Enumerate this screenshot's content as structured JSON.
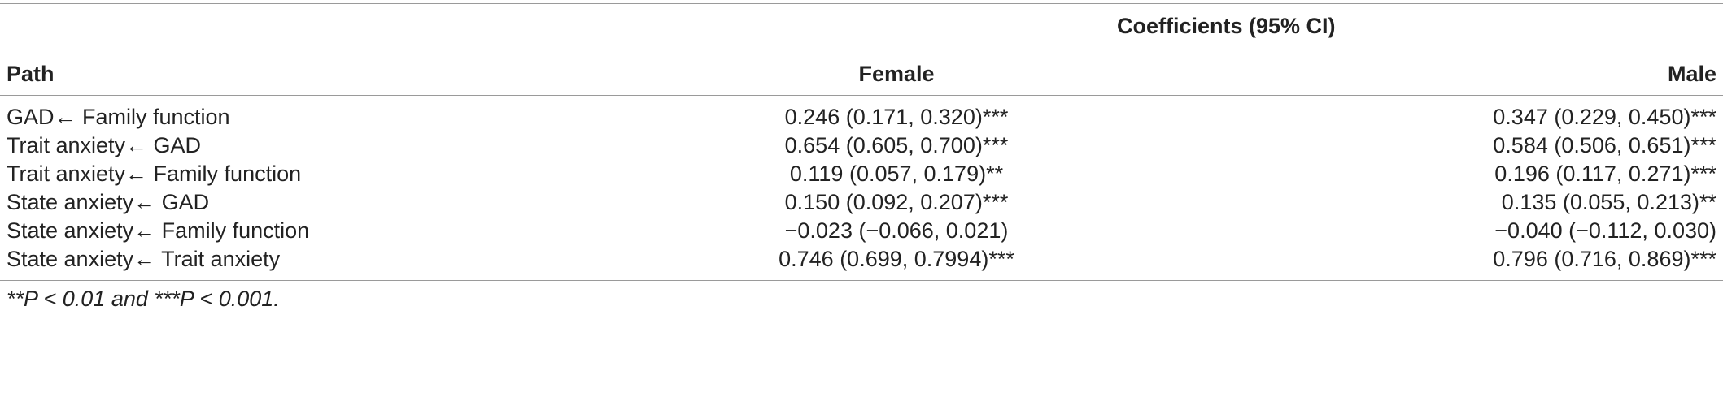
{
  "table": {
    "group_header": "Coefficients (95% CI)",
    "col_path": "Path",
    "col_female": "Female",
    "col_male": "Male",
    "rows": [
      {
        "path": "GAD← Family function",
        "female": "0.246 (0.171, 0.320)***",
        "male": "0.347 (0.229, 0.450)***"
      },
      {
        "path": "Trait anxiety← GAD",
        "female": "0.654 (0.605, 0.700)***",
        "male": "0.584 (0.506, 0.651)***"
      },
      {
        "path": "Trait anxiety← Family function",
        "female": "0.119 (0.057, 0.179)**",
        "male": "0.196 (0.117, 0.271)***"
      },
      {
        "path": "State anxiety← GAD",
        "female": "0.150 (0.092, 0.207)***",
        "male": "0.135 (0.055, 0.213)**"
      },
      {
        "path": "State anxiety← Family function",
        "female": "−0.023 (−0.066, 0.021)",
        "male": "−0.040 (−0.112, 0.030)"
      },
      {
        "path": "State anxiety← Trait anxiety",
        "female": "0.746 (0.699, 0.7994)***",
        "male": "0.796 (0.716, 0.869)***"
      }
    ],
    "footnote": "**P < 0.01 and ***P < 0.001."
  }
}
